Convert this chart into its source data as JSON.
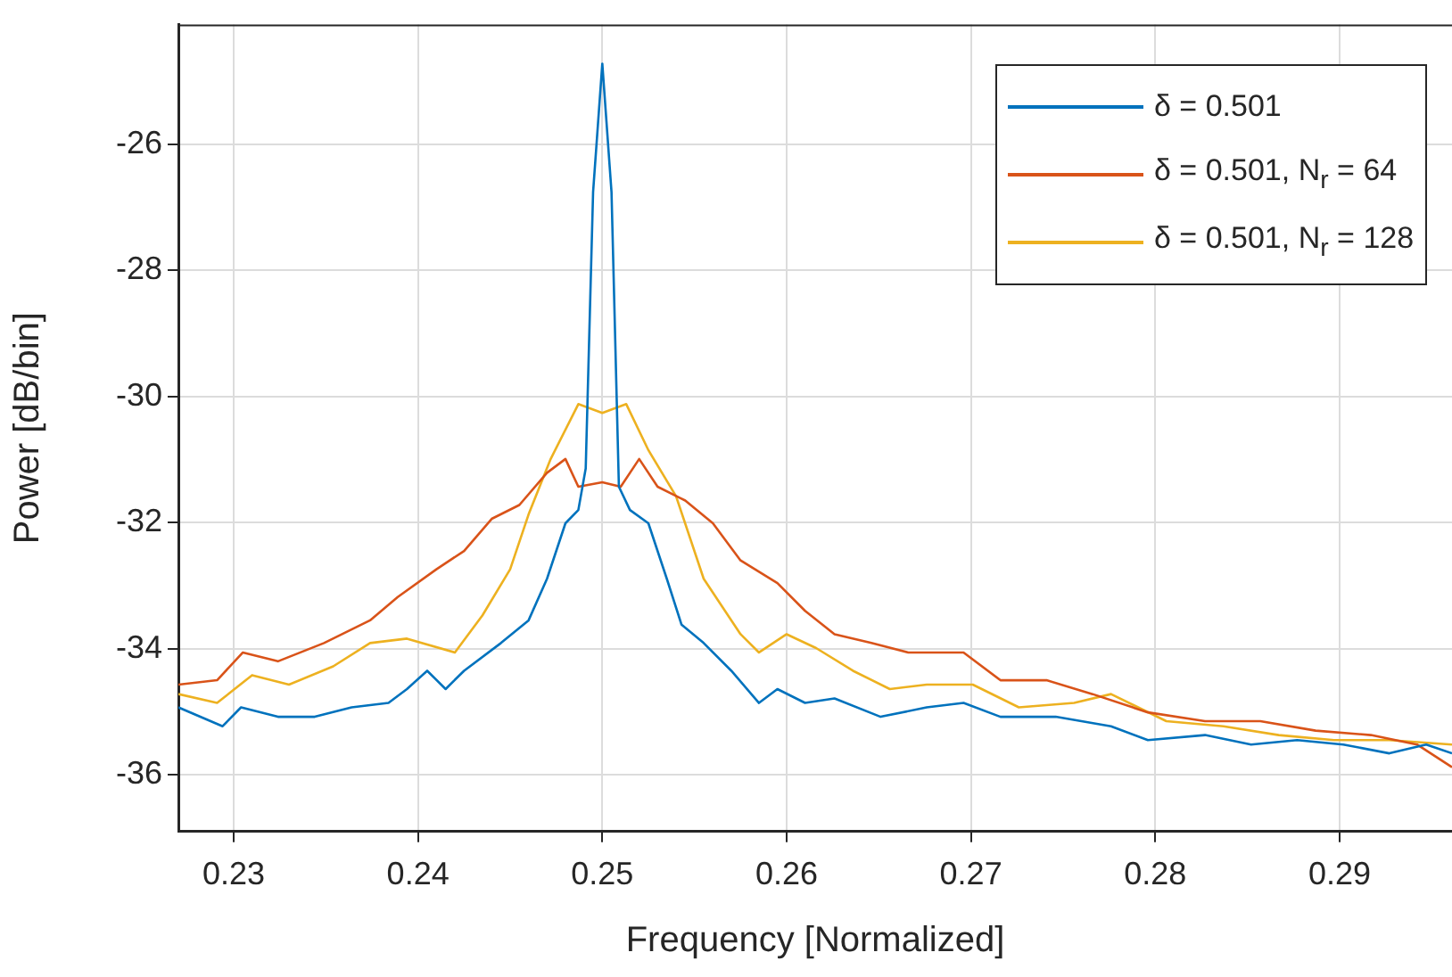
{
  "chart_data": {
    "type": "line",
    "xlabel": "Frequency [Normalized]",
    "ylabel": "Power [dB/bin]",
    "xlim": [
      0.227,
      0.2961
    ],
    "ylim": [
      -36.9,
      -24.1
    ],
    "xticks": [
      0.23,
      0.24,
      0.25,
      0.26,
      0.27,
      0.28,
      0.29
    ],
    "yticks": [
      -36,
      -34,
      -32,
      -30,
      -28,
      -26
    ],
    "grid": true,
    "legend": "top right",
    "marker": "none",
    "line_style": "solid",
    "series": [
      {
        "name": "δ = 0.501",
        "color": "#0072bd",
        "x": [
          0.227,
          0.2294,
          0.2304,
          0.2324,
          0.2344,
          0.2364,
          0.2384,
          0.2394,
          0.2405,
          0.2415,
          0.2425,
          0.2445,
          0.246,
          0.247,
          0.248,
          0.2487,
          0.2491,
          0.2495,
          0.25,
          0.2505,
          0.2509,
          0.2515,
          0.2525,
          0.2535,
          0.2543,
          0.2555,
          0.257,
          0.2585,
          0.2595,
          0.261,
          0.2626,
          0.2651,
          0.2676,
          0.2696,
          0.2716,
          0.2746,
          0.2776,
          0.2796,
          0.2827,
          0.2852,
          0.2877,
          0.2902,
          0.2927,
          0.2947,
          0.2961
        ],
        "values": [
          -34.93,
          -35.23,
          -34.93,
          -35.08,
          -35.08,
          -34.93,
          -34.86,
          -34.64,
          -34.35,
          -34.64,
          -34.35,
          -33.91,
          -33.55,
          -32.89,
          -32.01,
          -31.8,
          -31.14,
          -26.76,
          -24.72,
          -26.76,
          -31.43,
          -31.8,
          -32.01,
          -32.89,
          -33.62,
          -33.91,
          -34.35,
          -34.86,
          -34.64,
          -34.86,
          -34.79,
          -35.08,
          -34.93,
          -34.86,
          -35.08,
          -35.08,
          -35.23,
          -35.45,
          -35.37,
          -35.52,
          -35.45,
          -35.52,
          -35.66,
          -35.52,
          -35.66
        ]
      },
      {
        "name": "δ = 0.501, N$_{r}$ = 64",
        "color": "#d95319",
        "x": [
          0.227,
          0.2291,
          0.2305,
          0.2324,
          0.2349,
          0.2374,
          0.2389,
          0.241,
          0.2425,
          0.244,
          0.2455,
          0.247,
          0.248,
          0.2487,
          0.25,
          0.251,
          0.252,
          0.253,
          0.2545,
          0.256,
          0.2575,
          0.2595,
          0.261,
          0.2626,
          0.2646,
          0.2666,
          0.2696,
          0.2716,
          0.2741,
          0.2766,
          0.2796,
          0.2827,
          0.2857,
          0.2887,
          0.2917,
          0.2942,
          0.2961
        ],
        "values": [
          -34.57,
          -34.5,
          -34.06,
          -34.2,
          -33.91,
          -33.55,
          -33.18,
          -32.74,
          -32.45,
          -31.94,
          -31.72,
          -31.21,
          -30.99,
          -31.43,
          -31.36,
          -31.43,
          -30.99,
          -31.43,
          -31.65,
          -32.01,
          -32.6,
          -32.96,
          -33.4,
          -33.77,
          -33.91,
          -34.06,
          -34.06,
          -34.5,
          -34.5,
          -34.72,
          -35.01,
          -35.15,
          -35.15,
          -35.3,
          -35.37,
          -35.52,
          -35.88
        ]
      },
      {
        "name": "δ = 0.501, N$_{r}$ = 128",
        "color": "#edb120",
        "x": [
          0.227,
          0.2291,
          0.231,
          0.233,
          0.2354,
          0.2374,
          0.2394,
          0.242,
          0.2435,
          0.245,
          0.246,
          0.2472,
          0.2487,
          0.25,
          0.2513,
          0.2525,
          0.254,
          0.2555,
          0.2575,
          0.2585,
          0.26,
          0.2616,
          0.2636,
          0.2656,
          0.2676,
          0.2701,
          0.2726,
          0.2756,
          0.2776,
          0.2806,
          0.2837,
          0.2867,
          0.2897,
          0.2927,
          0.2961
        ],
        "values": [
          -34.72,
          -34.86,
          -34.42,
          -34.57,
          -34.28,
          -33.91,
          -33.84,
          -34.06,
          -33.47,
          -32.74,
          -31.87,
          -30.99,
          -30.12,
          -30.26,
          -30.12,
          -30.85,
          -31.58,
          -32.89,
          -33.77,
          -34.06,
          -33.77,
          -33.99,
          -34.35,
          -34.64,
          -34.57,
          -34.57,
          -34.93,
          -34.86,
          -34.72,
          -35.15,
          -35.23,
          -35.37,
          -35.45,
          -35.45,
          -35.52
        ]
      }
    ]
  }
}
